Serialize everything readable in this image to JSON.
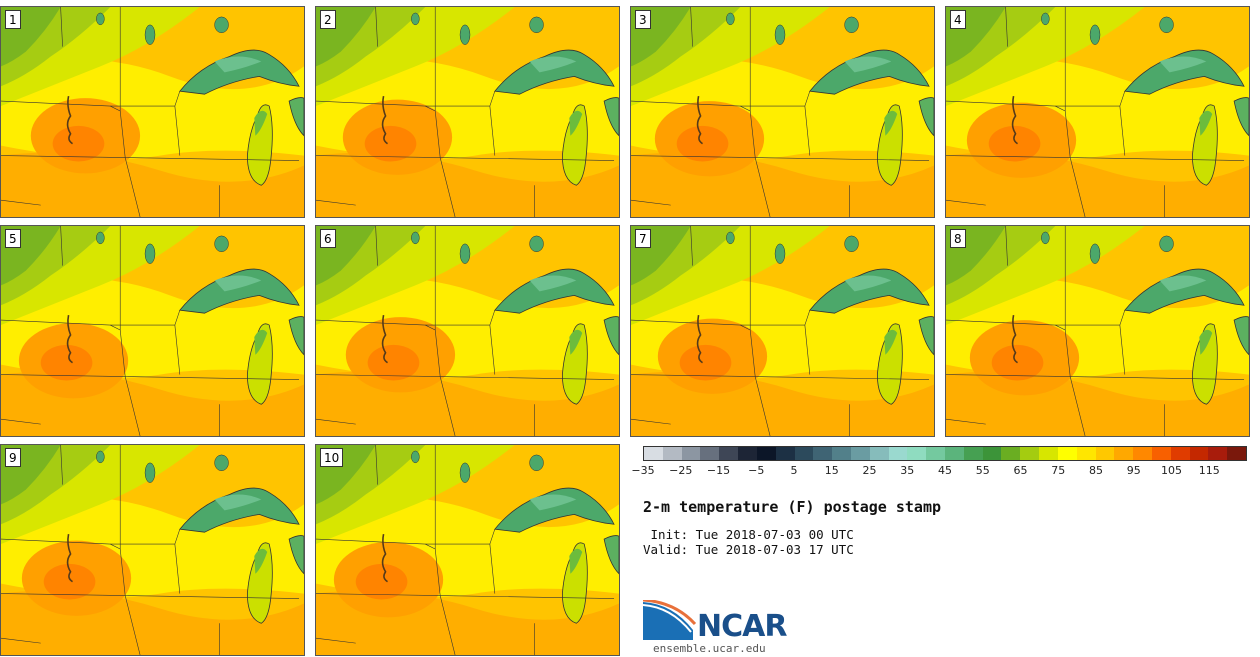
{
  "title": "2-m temperature (F) postage stamp",
  "init_label": " Init: Tue 2018-07-03 00 UTC",
  "valid_label": "Valid: Tue 2018-07-03 17 UTC",
  "members": [
    "1",
    "2",
    "3",
    "4",
    "5",
    "6",
    "7",
    "8",
    "9",
    "10"
  ],
  "colorbar": {
    "ticks": [
      "−35",
      "−25",
      "−15",
      "−5",
      "5",
      "15",
      "25",
      "35",
      "45",
      "55",
      "65",
      "75",
      "85",
      "95",
      "105",
      "115"
    ],
    "colors": [
      "#d8dde3",
      "#b3bac3",
      "#8c96a2",
      "#67707e",
      "#3e4656",
      "#1d2536",
      "#0c1628",
      "#1c3044",
      "#2c4a5c",
      "#3f6474",
      "#52808a",
      "#6a9ca2",
      "#86bcbb",
      "#9ad9cf",
      "#8fdcc0",
      "#74c99f",
      "#5bb47c",
      "#46a052",
      "#3c9439",
      "#6aae22",
      "#a4cc10",
      "#d7e600",
      "#ffff00",
      "#ffe600",
      "#ffc800",
      "#ffa800",
      "#ff8800",
      "#f86000",
      "#e03c00",
      "#c42800",
      "#a81c0c",
      "#7a180c"
    ]
  },
  "logo": {
    "name": "NCAR",
    "url": "ensemble.ucar.edu"
  }
}
